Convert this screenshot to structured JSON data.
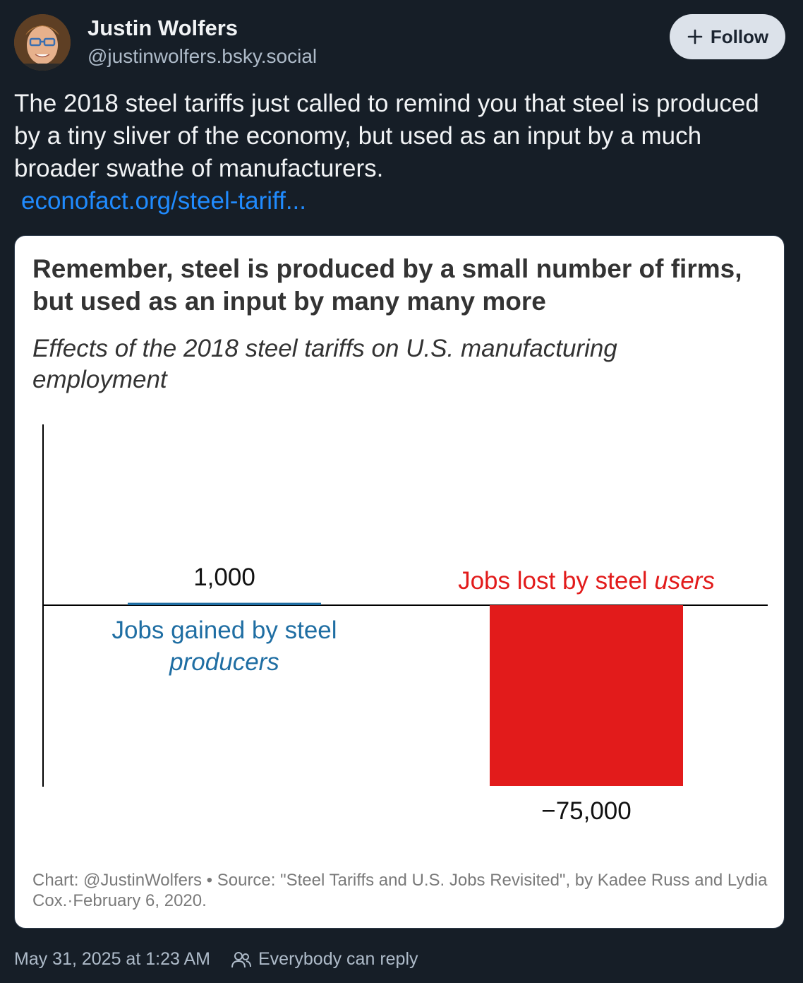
{
  "author": {
    "name": "Justin Wolfers",
    "handle": "@justinwolfers.bsky.social"
  },
  "follow_button": {
    "label": "Follow",
    "icon": "plus-icon"
  },
  "post": {
    "text": "The 2018 steel tariffs just called to remind you that steel is produced by a tiny sliver of the economy, but used as an input by a much broader swathe of manufacturers.",
    "link": "econofact.org/steel-tariff..."
  },
  "chart": {
    "title": "Remember, steel is produced by a small number of firms, but used as an input by many many more",
    "subtitle": "Effects of the 2018 steel tariffs on U.S. manufacturing employment",
    "source": "Chart: @JustinWolfers • Source: \"Steel Tariffs and U.S. Jobs Revisited\", by Kadee Russ and Lydia Cox.·February 6, 2020."
  },
  "chart_data": {
    "type": "bar",
    "categories": [
      {
        "text": "Jobs gained by steel ",
        "emphasis": "producers"
      },
      {
        "text": "Jobs lost by steel ",
        "emphasis": "users"
      }
    ],
    "values": [
      1000,
      -75000
    ],
    "value_labels": [
      "1,000",
      "−75,000"
    ],
    "colors": [
      "#1f6ea3",
      "#e21b1b"
    ],
    "ylim": [
      -75000,
      75000
    ]
  },
  "footer": {
    "timestamp": "May 31, 2025 at 1:23 AM",
    "reply_setting": "Everybody can reply",
    "reply_icon": "people-icon"
  }
}
